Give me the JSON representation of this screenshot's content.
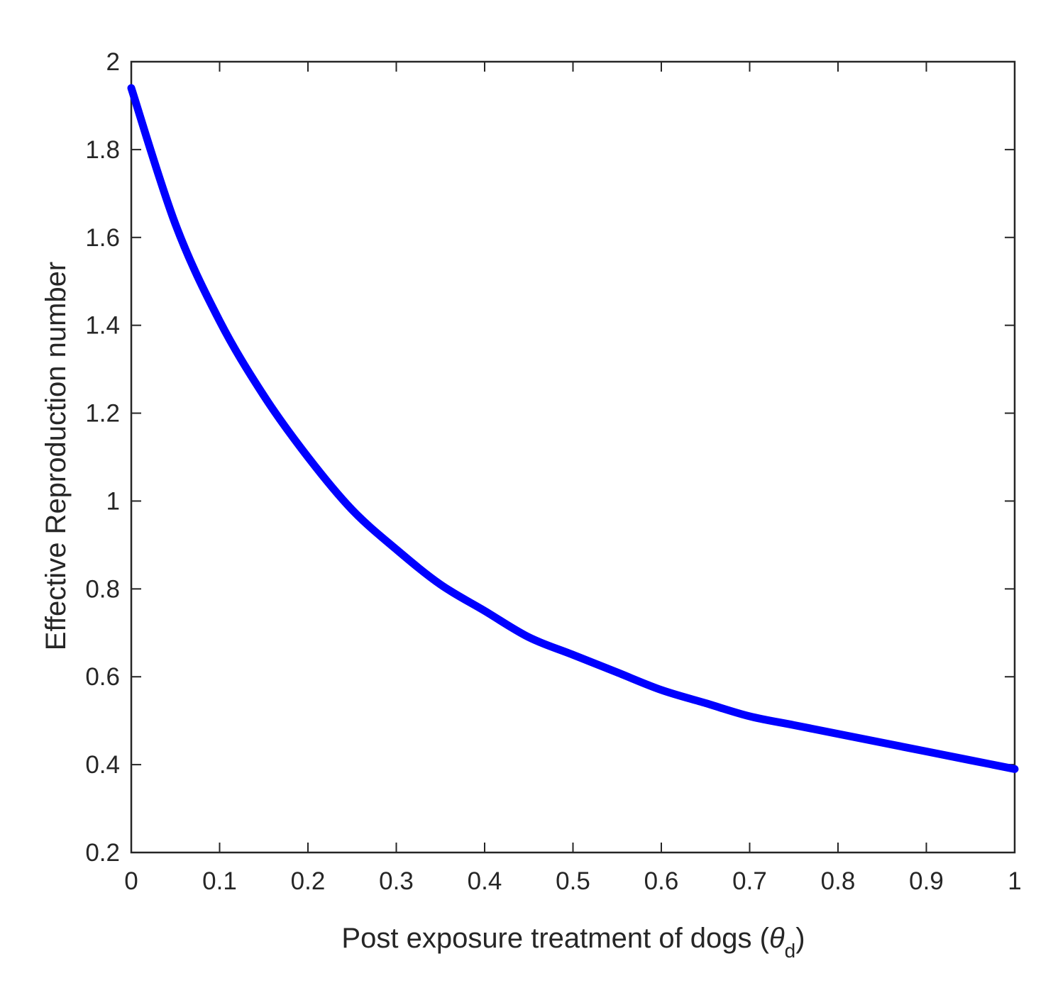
{
  "chart_data": {
    "type": "line",
    "title": "",
    "xlabel_main": "Post exposure treatment of dogs (",
    "xlabel_symbol": "θ",
    "xlabel_sub": "d",
    "xlabel_close": ")",
    "ylabel": "Effective Reproduction number",
    "xlim": [
      0,
      1
    ],
    "ylim": [
      0.2,
      2
    ],
    "xticks": [
      0,
      0.1,
      0.2,
      0.3,
      0.4,
      0.5,
      0.6,
      0.7,
      0.8,
      0.9,
      1
    ],
    "xtick_labels": [
      "0",
      "0.1",
      "0.2",
      "0.3",
      "0.4",
      "0.5",
      "0.6",
      "0.7",
      "0.8",
      "0.9",
      "1"
    ],
    "yticks": [
      0.2,
      0.4,
      0.6,
      0.8,
      1,
      1.2,
      1.4,
      1.6,
      1.8,
      2
    ],
    "ytick_labels": [
      "0.2",
      "0.4",
      "0.6",
      "0.8",
      "1",
      "1.2",
      "1.4",
      "1.6",
      "1.8",
      "2"
    ],
    "grid": false,
    "series": [
      {
        "color": "#0000ff",
        "x": [
          0,
          0.05,
          0.1,
          0.15,
          0.2,
          0.25,
          0.3,
          0.35,
          0.4,
          0.45,
          0.5,
          0.55,
          0.6,
          0.65,
          0.7,
          0.75,
          0.8,
          0.85,
          0.9,
          0.95,
          1
        ],
        "y": [
          1.94,
          1.63,
          1.41,
          1.24,
          1.1,
          0.98,
          0.89,
          0.81,
          0.75,
          0.69,
          0.65,
          0.61,
          0.57,
          0.54,
          0.51,
          0.49,
          0.47,
          0.45,
          0.43,
          0.41,
          0.39
        ]
      }
    ]
  }
}
